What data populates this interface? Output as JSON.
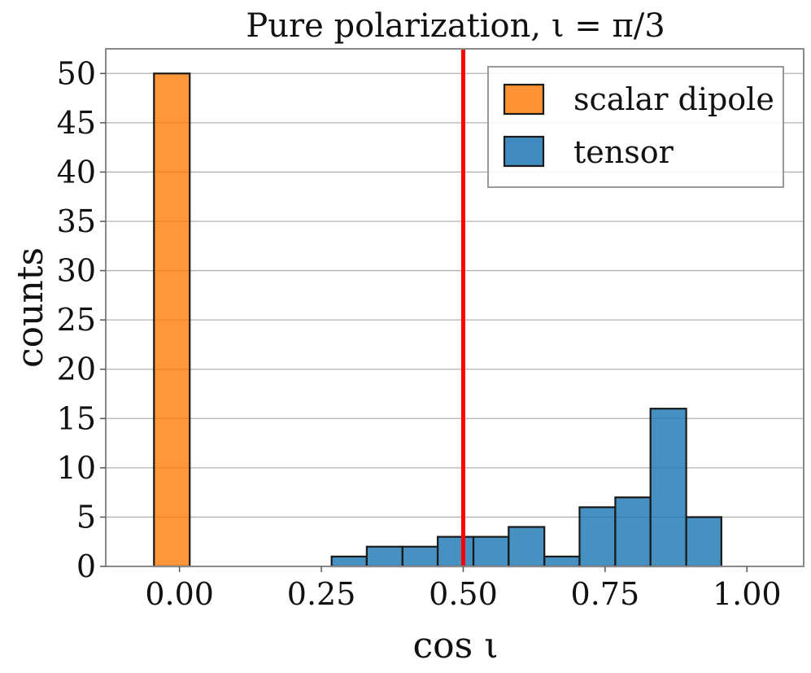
{
  "chart_data": {
    "type": "bar",
    "title": "Pure polarization, ι = π/3",
    "xlabel": "cos ι",
    "ylabel": "counts",
    "xlim": [
      -0.13,
      1.1
    ],
    "ylim": [
      0,
      52.5
    ],
    "grid": "horizontal",
    "xticks": [
      0.0,
      0.25,
      0.5,
      0.75,
      1.0
    ],
    "xtick_labels": [
      "0.00",
      "0.25",
      "0.50",
      "0.75",
      "1.00"
    ],
    "yticks": [
      0,
      5,
      10,
      15,
      20,
      25,
      30,
      35,
      40,
      45,
      50
    ],
    "ytick_labels": [
      "0",
      "5",
      "10",
      "15",
      "20",
      "25",
      "30",
      "35",
      "40",
      "45",
      "50"
    ],
    "reference_line": {
      "x": 0.5,
      "color": "#ff0000"
    },
    "legend": {
      "placement": "top-right"
    },
    "series": [
      {
        "name": "scalar dipole",
        "color": "#ff7f0e",
        "bins": [
          {
            "x0": -0.045,
            "x1": 0.018,
            "count": 50
          }
        ]
      },
      {
        "name": "tensor",
        "color": "#1f77b4",
        "bins": [
          {
            "x0": 0.268,
            "x1": 0.33,
            "count": 1
          },
          {
            "x0": 0.33,
            "x1": 0.393,
            "count": 2
          },
          {
            "x0": 0.393,
            "x1": 0.455,
            "count": 2
          },
          {
            "x0": 0.455,
            "x1": 0.518,
            "count": 3
          },
          {
            "x0": 0.518,
            "x1": 0.58,
            "count": 3
          },
          {
            "x0": 0.58,
            "x1": 0.643,
            "count": 4
          },
          {
            "x0": 0.643,
            "x1": 0.705,
            "count": 1
          },
          {
            "x0": 0.705,
            "x1": 0.768,
            "count": 6
          },
          {
            "x0": 0.768,
            "x1": 0.83,
            "count": 7
          },
          {
            "x0": 0.83,
            "x1": 0.893,
            "count": 16
          },
          {
            "x0": 0.893,
            "x1": 0.955,
            "count": 5
          }
        ]
      }
    ]
  }
}
